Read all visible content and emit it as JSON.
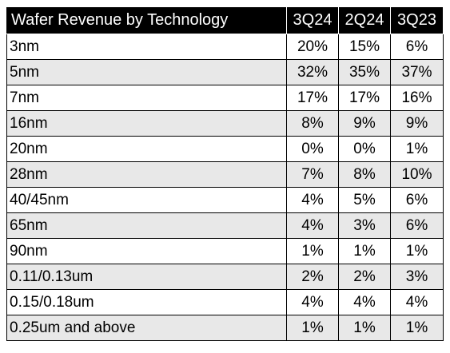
{
  "chart_data": {
    "type": "table",
    "title": "Wafer Revenue by Technology",
    "columns": [
      "3Q24",
      "2Q24",
      "3Q23"
    ],
    "rows": [
      {
        "technology": "3nm",
        "values": [
          "20%",
          "15%",
          "6%"
        ]
      },
      {
        "technology": "5nm",
        "values": [
          "32%",
          "35%",
          "37%"
        ]
      },
      {
        "technology": "7nm",
        "values": [
          "17%",
          "17%",
          "16%"
        ]
      },
      {
        "technology": "16nm",
        "values": [
          "8%",
          "9%",
          "9%"
        ]
      },
      {
        "technology": "20nm",
        "values": [
          "0%",
          "0%",
          "1%"
        ]
      },
      {
        "technology": "28nm",
        "values": [
          "7%",
          "8%",
          "10%"
        ]
      },
      {
        "technology": "40/45nm",
        "values": [
          "4%",
          "5%",
          "6%"
        ]
      },
      {
        "technology": "65nm",
        "values": [
          "4%",
          "3%",
          "6%"
        ]
      },
      {
        "technology": "90nm",
        "values": [
          "1%",
          "1%",
          "1%"
        ]
      },
      {
        "technology": "0.11/0.13um",
        "values": [
          "2%",
          "2%",
          "3%"
        ]
      },
      {
        "technology": "0.15/0.18um",
        "values": [
          "4%",
          "4%",
          "4%"
        ]
      },
      {
        "technology": "0.25um and above",
        "values": [
          "1%",
          "1%",
          "1%"
        ]
      }
    ]
  },
  "colors": {
    "header_background": "#000000",
    "header_text": "#ffffff",
    "row_stripe": "#e8e8e8",
    "grid_line": "#000000"
  }
}
